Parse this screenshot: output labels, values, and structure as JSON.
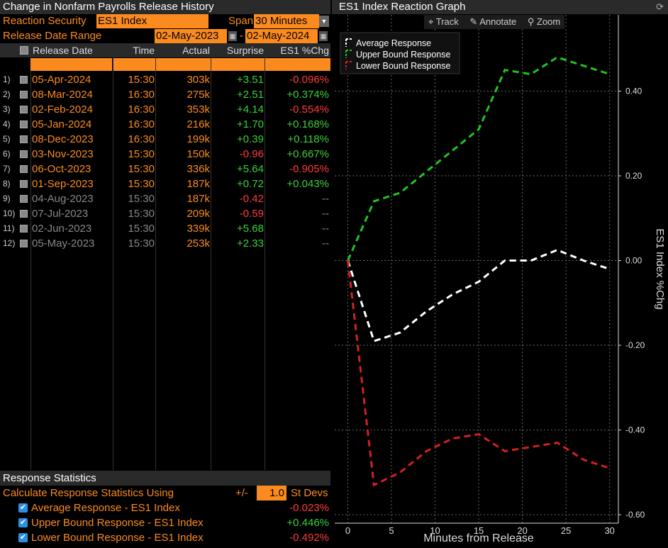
{
  "left": {
    "title": "Change in Nonfarm Payrolls Release History",
    "security_label": "Reaction Security",
    "security_value": "ES1 Index",
    "span_label": "Span",
    "span_value": "30 Minutes",
    "range_label": "Release Date Range",
    "range_start": "02-May-2023",
    "range_sep": "-",
    "range_end": "02-May-2024",
    "headers": {
      "date": "Release Date",
      "time": "Time",
      "actual": "Actual",
      "surprise": "Surprise",
      "chg": "ES1 %Chg"
    },
    "rows": [
      {
        "idx": "1)",
        "date": "05-Apr-2024",
        "time": "15:30",
        "actual": "303k",
        "surprise": "+3.51",
        "chg": "-0.096%",
        "active": true
      },
      {
        "idx": "2)",
        "date": "08-Mar-2024",
        "time": "16:30",
        "actual": "275k",
        "surprise": "+2.51",
        "chg": "+0.374%",
        "active": true
      },
      {
        "idx": "3)",
        "date": "02-Feb-2024",
        "time": "16:30",
        "actual": "353k",
        "surprise": "+4.14",
        "chg": "-0.554%",
        "active": true
      },
      {
        "idx": "4)",
        "date": "05-Jan-2024",
        "time": "16:30",
        "actual": "216k",
        "surprise": "+1.70",
        "chg": "+0.168%",
        "active": true
      },
      {
        "idx": "5)",
        "date": "08-Dec-2023",
        "time": "16:30",
        "actual": "199k",
        "surprise": "+0.39",
        "chg": "+0.118%",
        "active": true
      },
      {
        "idx": "6)",
        "date": "03-Nov-2023",
        "time": "15:30",
        "actual": "150k",
        "surprise": "-0.96",
        "chg": "+0.667%",
        "active": true
      },
      {
        "idx": "7)",
        "date": "06-Oct-2023",
        "time": "15:30",
        "actual": "336k",
        "surprise": "+5.64",
        "chg": "-0.905%",
        "active": true
      },
      {
        "idx": "8)",
        "date": "01-Sep-2023",
        "time": "15:30",
        "actual": "187k",
        "surprise": "+0.72",
        "chg": "+0.043%",
        "active": true
      },
      {
        "idx": "9)",
        "date": "04-Aug-2023",
        "time": "15:30",
        "actual": "187k",
        "surprise": "-0.42",
        "chg": "--",
        "active": false
      },
      {
        "idx": "10)",
        "date": "07-Jul-2023",
        "time": "15:30",
        "actual": "209k",
        "surprise": "-0.59",
        "chg": "--",
        "active": false
      },
      {
        "idx": "11)",
        "date": "02-Jun-2023",
        "time": "15:30",
        "actual": "339k",
        "surprise": "+5.68",
        "chg": "--",
        "active": false
      },
      {
        "idx": "12)",
        "date": "05-May-2023",
        "time": "15:30",
        "actual": "253k",
        "surprise": "+2.33",
        "chg": "--",
        "active": false
      }
    ],
    "stats": {
      "title": "Response Statistics",
      "calc_label": "Calculate Response Statistics Using",
      "pm": "+/-",
      "stdevs_value": "1.0",
      "stdevs_label": "St Devs",
      "items": [
        {
          "label": "Average Response - ES1 Index",
          "value": "-0.023%"
        },
        {
          "label": "Upper Bound Response - ES1 Index",
          "value": "+0.446%"
        },
        {
          "label": "Lower Bound Response - ES1 Index",
          "value": "-0.492%"
        }
      ]
    }
  },
  "right": {
    "title": "ES1 Index Reaction Graph",
    "toolbar": {
      "track": "Track",
      "annotate": "Annotate",
      "zoom": "Zoom"
    }
  },
  "colors": {
    "orange": "#fb8b1e",
    "green": "#3bd13b",
    "red": "#ff3b3b",
    "panel": "#2a2a2a"
  },
  "chart_data": {
    "type": "line",
    "title": "",
    "xlabel": "Minutes from Release",
    "ylabel": "ES1 Index %Chg",
    "xlim": [
      -1.5,
      31
    ],
    "ylim": [
      -0.62,
      0.58
    ],
    "xticks": [
      0,
      5,
      10,
      15,
      20,
      25,
      30
    ],
    "yticks": [
      0.4,
      0.2,
      0.0,
      -0.2,
      -0.4,
      -0.6
    ],
    "ytick_labels": [
      "0.40",
      "0.20",
      "0.00",
      "-0.20",
      "-0.40",
      "-0.60"
    ],
    "grid": true,
    "legend_position": "top-left",
    "x": [
      0,
      3,
      6,
      9,
      12,
      15,
      18,
      21,
      24,
      27,
      30
    ],
    "series": [
      {
        "name": "Average Response",
        "color": "#ffffff",
        "values": [
          0.0,
          -0.19,
          -0.17,
          -0.12,
          -0.08,
          -0.05,
          0.0,
          0.0,
          0.025,
          0.0,
          -0.02
        ]
      },
      {
        "name": "Upper Bound Response",
        "color": "#22c322",
        "values": [
          0.0,
          0.14,
          0.16,
          0.21,
          0.26,
          0.31,
          0.45,
          0.44,
          0.48,
          0.46,
          0.44
        ]
      },
      {
        "name": "Lower Bound Response",
        "color": "#d42020",
        "values": [
          0.0,
          -0.53,
          -0.5,
          -0.45,
          -0.42,
          -0.41,
          -0.45,
          -0.44,
          -0.43,
          -0.47,
          -0.49
        ]
      }
    ]
  }
}
